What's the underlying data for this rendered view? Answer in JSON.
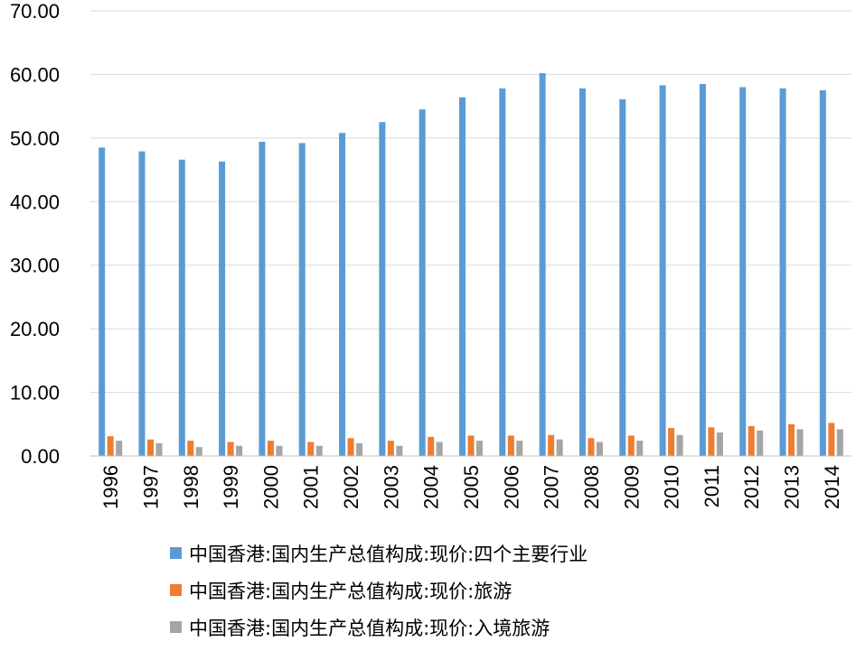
{
  "chart_data": {
    "type": "bar",
    "title": "",
    "xlabel": "",
    "ylabel": "",
    "ylim": [
      0,
      70
    ],
    "yticks": [
      "0.00",
      "10.00",
      "20.00",
      "30.00",
      "40.00",
      "50.00",
      "60.00",
      "70.00"
    ],
    "grid": true,
    "legend_position": "bottom",
    "categories": [
      "1996",
      "1997",
      "1998",
      "1999",
      "2000",
      "2001",
      "2002",
      "2003",
      "2004",
      "2005",
      "2006",
      "2007",
      "2008",
      "2009",
      "2010",
      "2011",
      "2012",
      "2013",
      "2014"
    ],
    "series": [
      {
        "name": "中国香港:国内生产总值构成:现价:四个主要行业",
        "color": "#5b9bd5",
        "values": [
          48.5,
          47.9,
          46.6,
          46.3,
          49.4,
          49.2,
          50.8,
          52.5,
          54.5,
          56.4,
          57.8,
          60.2,
          57.8,
          56.1,
          58.3,
          58.5,
          58.0,
          57.8,
          57.5
        ]
      },
      {
        "name": "中国香港:国内生产总值构成:现价:旅游",
        "color": "#ed7d31",
        "values": [
          3.1,
          2.6,
          2.4,
          2.2,
          2.4,
          2.2,
          2.8,
          2.4,
          3.0,
          3.2,
          3.2,
          3.3,
          2.8,
          3.2,
          4.4,
          4.5,
          4.7,
          5.0,
          5.2
        ]
      },
      {
        "name": "中国香港:国内生产总值构成:现价:入境旅游",
        "color": "#a5a5a5",
        "values": [
          2.4,
          2.0,
          1.4,
          1.6,
          1.6,
          1.6,
          2.0,
          1.6,
          2.2,
          2.4,
          2.4,
          2.6,
          2.2,
          2.4,
          3.3,
          3.7,
          4.0,
          4.2,
          4.2
        ]
      }
    ]
  }
}
